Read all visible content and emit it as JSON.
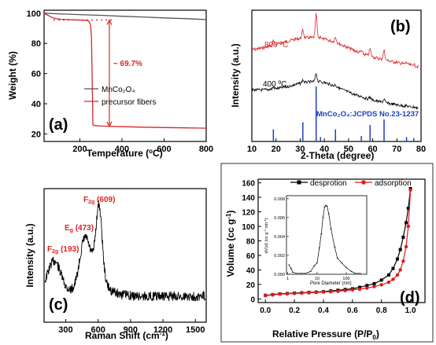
{
  "colors": {
    "black": "#000000",
    "red": "#d62728",
    "blue": "#1f3fbf"
  },
  "chart_data": [
    {
      "panel": "(a)",
      "type": "line",
      "xlabel": "Temperature (",
      "xlabel_unit": "C)",
      "ylabel": "Weight (%)",
      "xlim": [
        30,
        800
      ],
      "ylim": [
        15,
        102
      ],
      "xticks": [
        200,
        400,
        600,
        800
      ],
      "yticks": [
        20,
        40,
        60,
        80,
        100
      ],
      "series": [
        {
          "name": "MnCo₂O₄",
          "color": "#555555",
          "x": [
            30,
            100,
            200,
            300,
            400,
            500,
            600,
            700,
            800
          ],
          "y": [
            100,
            99.6,
            99.1,
            98.6,
            98.0,
            97.5,
            96.9,
            96.4,
            95.8
          ]
        },
        {
          "name": "precursor fibers",
          "color": "#d62728",
          "x": [
            30,
            50,
            70,
            90,
            110,
            140,
            180,
            220,
            240,
            250,
            255,
            258,
            262,
            270,
            300,
            400,
            500,
            600,
            700,
            800
          ],
          "y": [
            100,
            98.5,
            97,
            96.3,
            96.0,
            95.8,
            95.6,
            95.4,
            95.0,
            93,
            85,
            60,
            26,
            25.5,
            25.2,
            24.8,
            24.5,
            24.2,
            24.0,
            23.8
          ]
        }
      ],
      "annotation": "~ 69.7%",
      "annotation_range": [
        95.5,
        25.0
      ],
      "annotation_x": 340
    },
    {
      "panel": "(b)",
      "type": "line",
      "xlabel": "2-Theta (degree)",
      "ylabel": "Intensity (a.u.)",
      "xlim": [
        10,
        80
      ],
      "xticks": [
        10,
        20,
        30,
        40,
        50,
        60,
        70,
        80
      ],
      "series": [
        {
          "name": "800 ºC",
          "color": "#d62728"
        },
        {
          "name": "400 ºC",
          "color": "#000000"
        }
      ],
      "reference_label": "MnCo₂O₄:JCPDS No.23-1237",
      "reference_peaks": [
        {
          "x": 18.9,
          "h": 0.22
        },
        {
          "x": 31.1,
          "h": 0.35
        },
        {
          "x": 36.6,
          "h": 1.0
        },
        {
          "x": 38.4,
          "h": 0.08
        },
        {
          "x": 44.6,
          "h": 0.22
        },
        {
          "x": 55.3,
          "h": 0.1
        },
        {
          "x": 58.9,
          "h": 0.3
        },
        {
          "x": 64.7,
          "h": 0.4
        },
        {
          "x": 74.0,
          "h": 0.08
        },
        {
          "x": 77.0,
          "h": 0.06
        }
      ]
    },
    {
      "panel": "(c)",
      "type": "line",
      "xlabel": "Raman Shift (cm",
      "xlabel_sup": "-1",
      "xlabel_end": ")",
      "ylabel": "Intensity (a.u.)",
      "xlim": [
        100,
        1600
      ],
      "xticks": [
        300,
        600,
        900,
        1200,
        1500
      ],
      "peaks": [
        {
          "label": "F",
          "sub": "2g",
          "value": " (193)",
          "x": 193
        },
        {
          "label": "E",
          "sub": "g",
          "value": " (473)",
          "x": 473
        },
        {
          "label": "F",
          "sub": "2g",
          "value": " (609)",
          "x": 609
        }
      ]
    },
    {
      "panel": "(d)",
      "type": "line",
      "xlabel": "Relative Pressure (P/P",
      "xlabel_sub": "0",
      "xlabel_end": ")",
      "ylabel": "Volume (cc g",
      "ylabel_sup": "-1",
      "ylabel_end": ")",
      "xlim": [
        -0.05,
        1.1
      ],
      "ylim": [
        -5,
        165
      ],
      "xticks": [
        0.0,
        0.2,
        0.4,
        0.6,
        0.8,
        1.0
      ],
      "yticks": [
        0,
        20,
        40,
        60,
        80,
        100,
        120,
        140,
        160
      ],
      "series": [
        {
          "name": "desprotion",
          "color": "#000000",
          "x": [
            0.0,
            0.05,
            0.1,
            0.15,
            0.2,
            0.25,
            0.3,
            0.35,
            0.4,
            0.45,
            0.5,
            0.55,
            0.6,
            0.65,
            0.7,
            0.75,
            0.8,
            0.85,
            0.88,
            0.91,
            0.93,
            0.95,
            0.97,
            0.985,
            1.0
          ],
          "y": [
            5,
            6,
            7,
            7.5,
            8,
            8.5,
            9,
            9.5,
            10,
            11,
            12,
            13,
            14,
            16,
            18.5,
            21,
            26,
            33,
            42,
            55,
            68,
            85,
            105,
            125,
            152
          ]
        },
        {
          "name": "adsorption",
          "color": "#e41a1c",
          "x": [
            0.0,
            0.05,
            0.1,
            0.15,
            0.2,
            0.25,
            0.3,
            0.35,
            0.4,
            0.45,
            0.5,
            0.55,
            0.6,
            0.65,
            0.7,
            0.75,
            0.8,
            0.85,
            0.88,
            0.91,
            0.93,
            0.95,
            0.97,
            0.985,
            1.0
          ],
          "y": [
            4.5,
            5.5,
            6.5,
            7,
            7.5,
            8,
            8.5,
            9,
            9.5,
            10,
            10.5,
            11.5,
            12.5,
            13.5,
            15,
            17,
            19.5,
            23,
            27,
            33,
            40,
            52,
            72,
            100,
            150
          ]
        }
      ],
      "inset": {
        "xlabel": "Pore Diameter (nm)",
        "ylabel": "dV(d) (cc g",
        "ylabel_mid": " nm",
        "ylabel_sup": "-1",
        "ylabel_sup2": "-1",
        "ylabel_end": ")",
        "xticks": [
          "1",
          "10",
          "100"
        ],
        "yticks": [
          "0.000",
          "0.002",
          "0.004",
          "0.006",
          "0.008"
        ],
        "ylim": [
          0,
          0.008
        ],
        "x_log": [
          1.1,
          1.3,
          1.5,
          2,
          3,
          4,
          5,
          6,
          8,
          10,
          12,
          14,
          16,
          18,
          20,
          22,
          25,
          30,
          40,
          50,
          70,
          100,
          150,
          200,
          300
        ],
        "y": [
          0.001,
          0.0006,
          0.0002,
          0.0001,
          0.0001,
          0.0001,
          0.0002,
          0.0003,
          0.0009,
          0.0012,
          0.0028,
          0.0043,
          0.006,
          0.0071,
          0.0073,
          0.0072,
          0.0064,
          0.0048,
          0.0029,
          0.0017,
          0.0012,
          0.0007,
          0.0003,
          0.0001,
          0.0001
        ]
      }
    }
  ]
}
